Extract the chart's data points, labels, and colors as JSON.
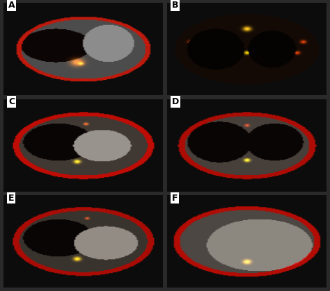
{
  "labels": [
    "A",
    "B",
    "C",
    "D",
    "E",
    "F"
  ],
  "grid_rows": 3,
  "grid_cols": 2,
  "background_color": "#1a1a1a",
  "label_bg": "#ffffff",
  "label_color": "#000000",
  "label_fontsize": 9,
  "figsize": [
    4.74,
    4.19
  ],
  "dpi": 100,
  "gap_color": "#2a2a2a",
  "border_color": "#444444"
}
